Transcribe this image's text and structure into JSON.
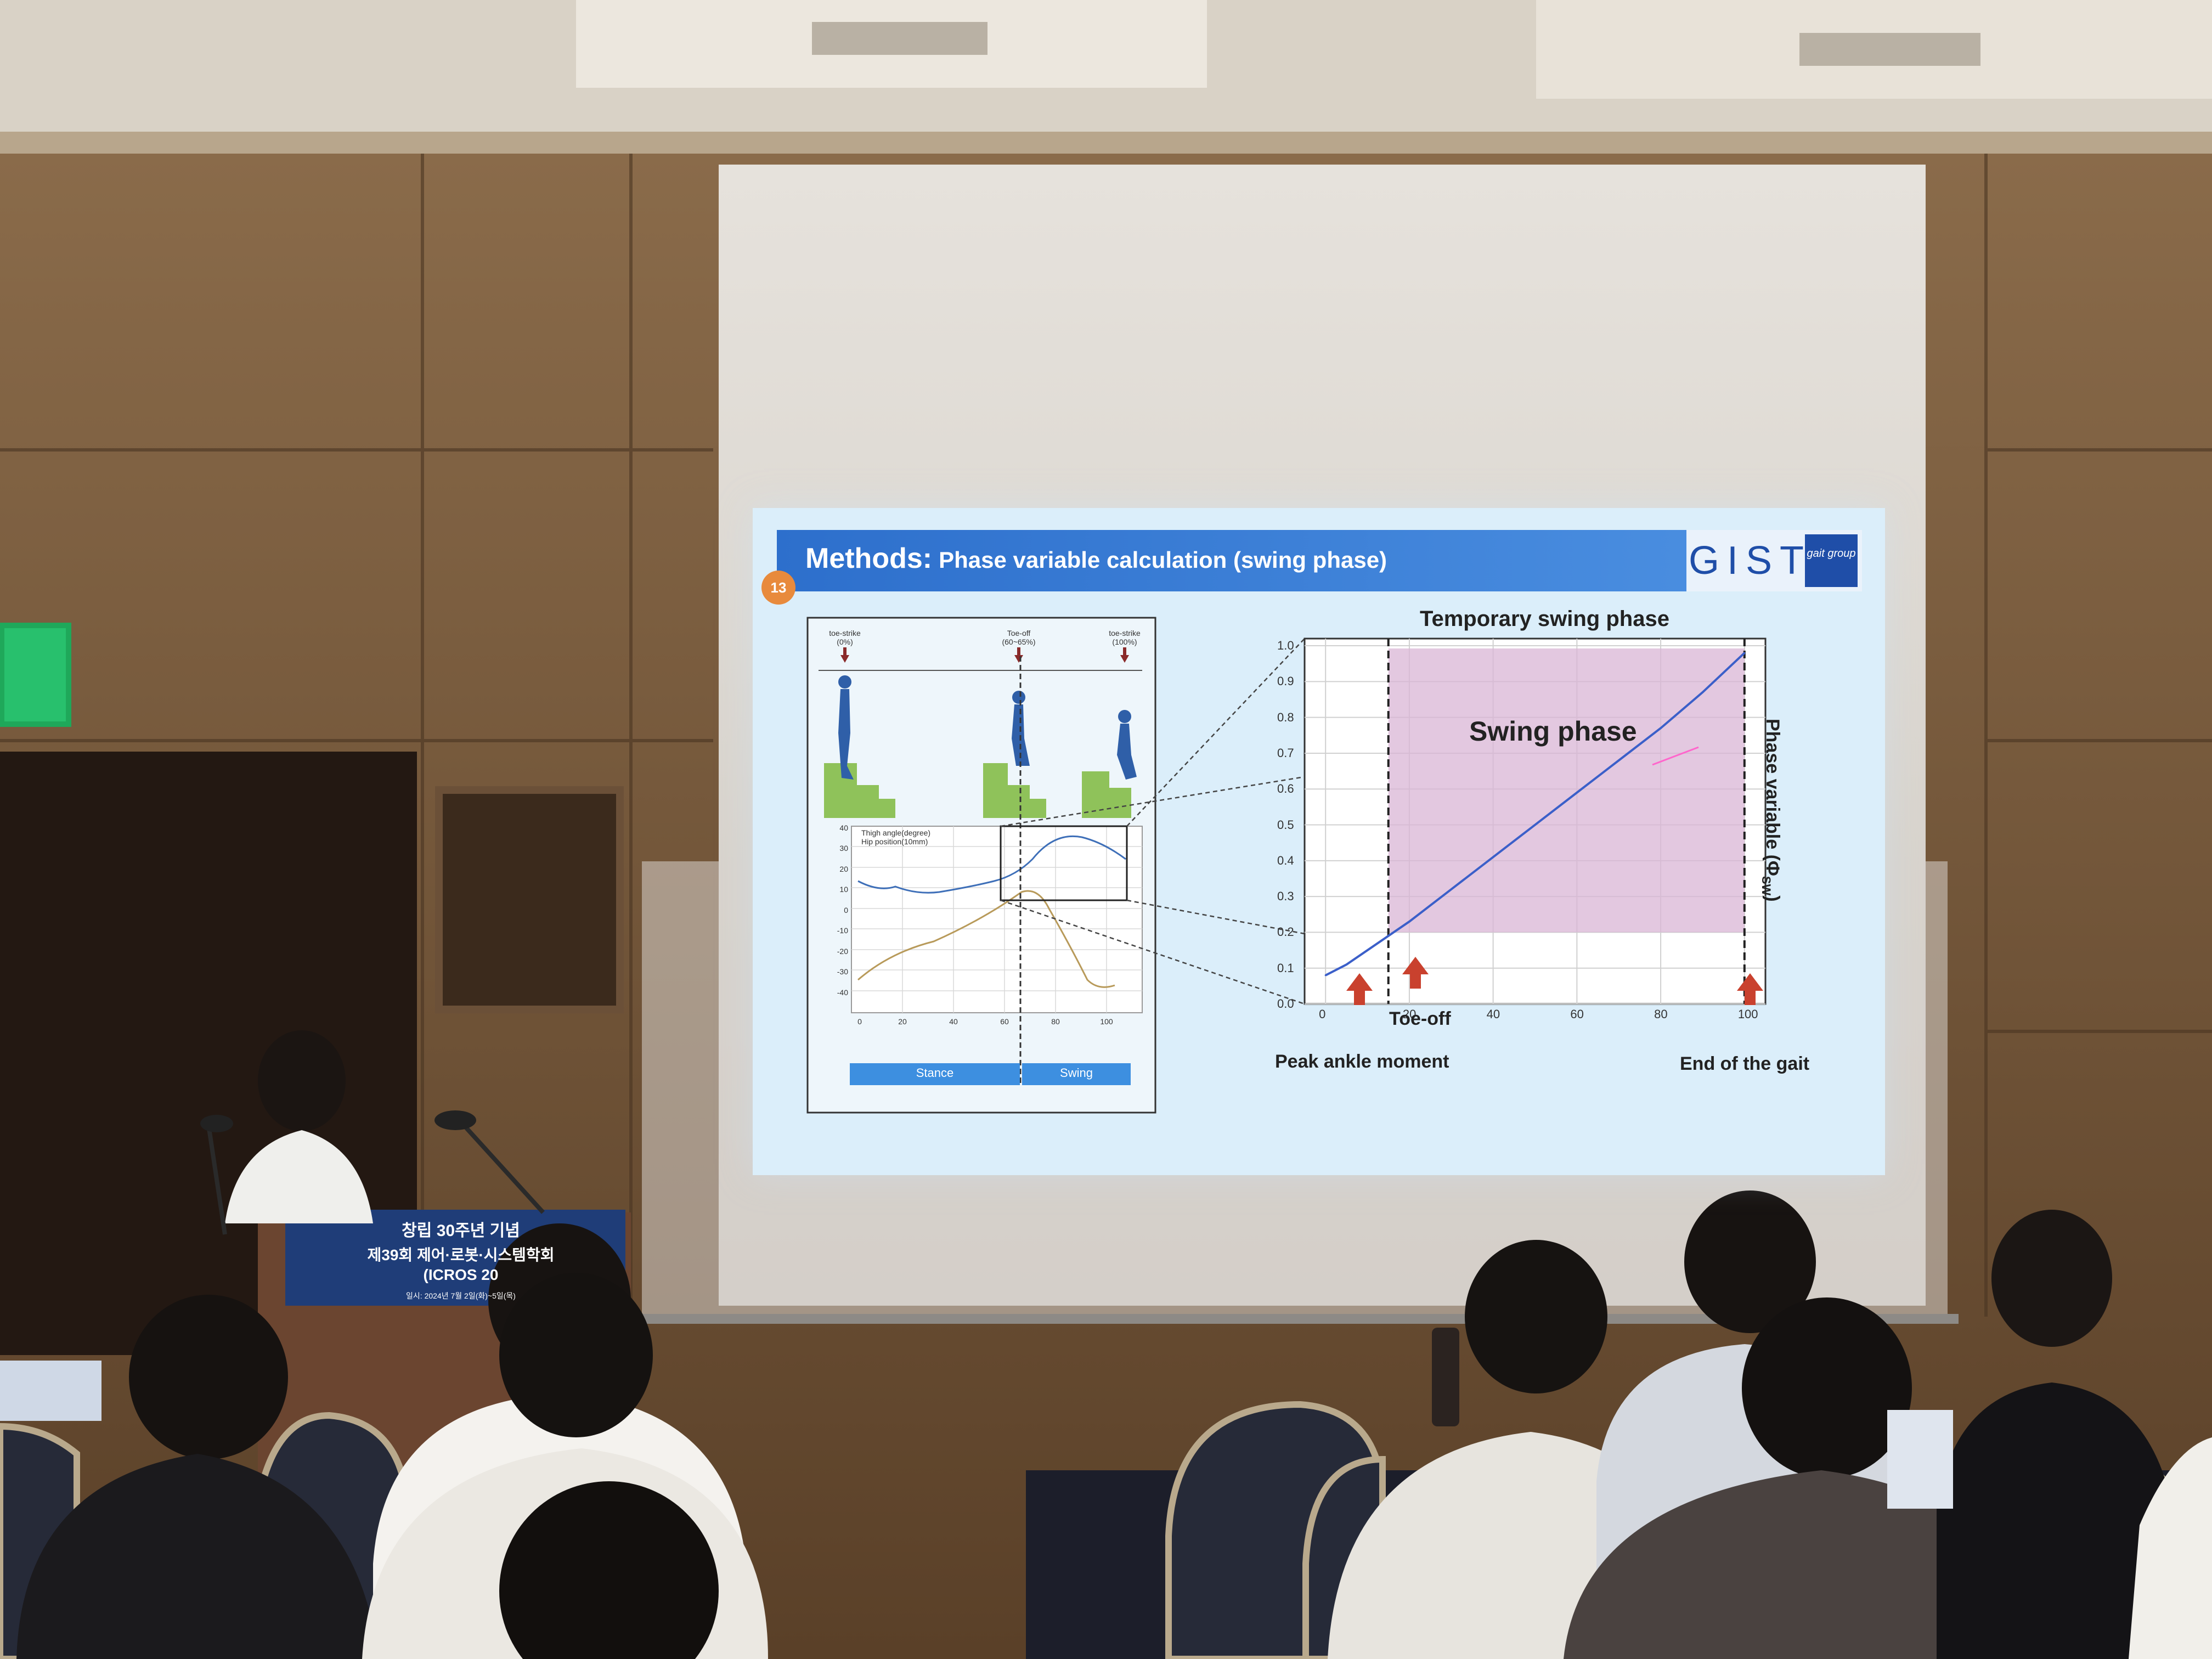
{
  "slide": {
    "title_strong": "Methods:",
    "title_rest": "Phase variable calculation (swing phase)",
    "logo_text": "GIST",
    "logo_badge": "gait group",
    "page_number": "13"
  },
  "left_figure": {
    "events": [
      {
        "name": "toe-strike",
        "pct": "(0%)"
      },
      {
        "name": "Toe-off",
        "pct": "(60~65%)"
      },
      {
        "name": "toe-strike",
        "pct": "(100%)"
      }
    ],
    "legend": [
      "Thigh angle(degree)",
      "Hip position(10mm)"
    ],
    "y_ticks": [
      "40",
      "30",
      "20",
      "10",
      "0",
      "-10",
      "-20",
      "-30",
      "-40"
    ],
    "x_ticks": [
      "0",
      "20",
      "40",
      "60",
      "80",
      "100"
    ],
    "bar_labels": [
      "Stance",
      "Swing"
    ]
  },
  "right_chart": {
    "title": "Temporary swing phase",
    "ylabel": "Phase variable (Φ",
    "ylabel_sub": "SW",
    "ylabel_end": ")",
    "region_label": "Swing phase",
    "y_ticks": [
      "1.0",
      "0.9",
      "0.8",
      "0.7",
      "0.6",
      "0.5",
      "0.4",
      "0.3",
      "0.2",
      "0.1",
      "0.0"
    ],
    "x_ticks": [
      "0",
      "20",
      "40",
      "60",
      "80",
      "100"
    ],
    "annotations": [
      "Toe-off",
      "Peak ankle moment",
      "End of the gait"
    ]
  },
  "chart_data": {
    "type": "line",
    "title": "Temporary swing phase",
    "xlabel": "",
    "ylabel": "Phase variable (Φsw)",
    "xlim": [
      -5,
      105
    ],
    "ylim": [
      0,
      1.02
    ],
    "x": [
      0,
      5,
      10,
      15,
      20,
      30,
      40,
      50,
      60,
      70,
      80,
      90,
      100
    ],
    "y": [
      0.08,
      0.11,
      0.15,
      0.19,
      0.23,
      0.32,
      0.41,
      0.5,
      0.59,
      0.68,
      0.77,
      0.87,
      0.98
    ],
    "shaded_region": {
      "x": [
        15,
        100
      ],
      "label": "Swing phase"
    },
    "vlines": [
      15,
      100
    ],
    "grid": true
  },
  "colors": {
    "slide_bg": "#dbeefa",
    "header": "#2d6fcc",
    "line": "#3b5fc9",
    "shade": "#d9b6d6",
    "arrow": "#c9412e",
    "orange_badge": "#e88a3c"
  },
  "podium": {
    "line1": "창립 30주년 기념",
    "line2": "제39회 제어·로봇·시스템학회",
    "line3": "(ICROS 20",
    "line4": "일시: 2024년 7월 2일(화)~5일(목)"
  }
}
